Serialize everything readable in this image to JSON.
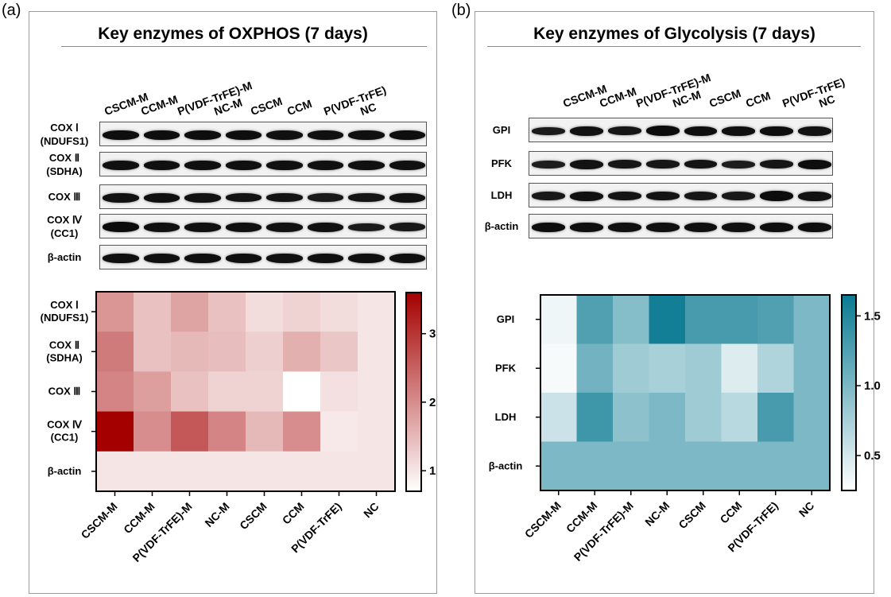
{
  "panels": {
    "a": {
      "letter": "(a)",
      "title": "Key enzymes of OXPHOS (7 days)",
      "lanes": [
        "CSCM-M",
        "CCM-M",
        "P(VDF-TrFE)-M",
        "NC-M",
        "CSCM",
        "CCM",
        "P(VDF-TrFE)",
        "NC"
      ],
      "blot_rows": [
        {
          "label": [
            "COX Ⅰ",
            "(NDUFS1)"
          ]
        },
        {
          "label": [
            "COX Ⅱ",
            "(SDHA)"
          ]
        },
        {
          "label": [
            "COX Ⅲ"
          ]
        },
        {
          "label": [
            "COX Ⅳ",
            "(CC1)"
          ]
        },
        {
          "label": [
            "β-actin"
          ]
        }
      ]
    },
    "b": {
      "letter": "(b)",
      "title": "Key enzymes of Glycolysis (7 days)",
      "lanes": [
        "CSCM-M",
        "CCM-M",
        "P(VDF-TrFE)-M",
        "NC-M",
        "CSCM",
        "CCM",
        "P(VDF-TrFE)",
        "NC"
      ],
      "blot_rows": [
        {
          "label": [
            "GPI"
          ]
        },
        {
          "label": [
            "PFK"
          ]
        },
        {
          "label": [
            "LDH"
          ]
        },
        {
          "label": [
            "β-actin"
          ]
        }
      ]
    }
  },
  "chart_data": [
    {
      "type": "heatmap",
      "title": "Key enzymes of OXPHOS (7 days)",
      "rows": [
        "COX Ⅰ\n(NDUFS1)",
        "COX Ⅱ\n(SDHA)",
        "COX Ⅲ",
        "COX Ⅳ\n(CC1)",
        "β-actin"
      ],
      "row_labels": [
        [
          "COX Ⅰ",
          "(NDUFS1)"
        ],
        [
          "COX Ⅱ",
          "(SDHA)"
        ],
        [
          "COX Ⅲ"
        ],
        [
          "COX Ⅳ",
          "(CC1)"
        ],
        [
          "β-actin"
        ]
      ],
      "columns": [
        "CSCM-M",
        "CCM-M",
        "P(VDF-TrFE)-M",
        "NC-M",
        "CSCM",
        "CCM",
        "P(VDF-TrFE)",
        "NC"
      ],
      "values": [
        [
          1.9,
          1.4,
          1.75,
          1.4,
          1.1,
          1.2,
          1.1,
          1.0
        ],
        [
          2.2,
          1.4,
          1.5,
          1.45,
          1.25,
          1.6,
          1.35,
          1.0
        ],
        [
          2.1,
          1.8,
          1.4,
          1.2,
          1.2,
          0.7,
          1.05,
          1.0
        ],
        [
          3.6,
          2.0,
          2.6,
          2.1,
          1.5,
          2.0,
          0.95,
          1.0
        ],
        [
          1.0,
          1.0,
          1.0,
          1.0,
          1.0,
          1.0,
          1.0,
          1.0
        ]
      ],
      "colorscale": {
        "min": 0.7,
        "max": 3.6,
        "low_color": "#ffffff",
        "high_color": "#a50000"
      },
      "colorbar_ticks": [
        1,
        2,
        3
      ],
      "colorbar_tick_labels": [
        "1",
        "2",
        "3"
      ]
    },
    {
      "type": "heatmap",
      "title": "Key enzymes of Glycolysis (7 days)",
      "rows": [
        "GPI",
        "PFK",
        "LDH",
        "β-actin"
      ],
      "row_labels": [
        [
          "GPI"
        ],
        [
          "PFK"
        ],
        [
          "LDH"
        ],
        [
          "β-actin"
        ]
      ],
      "columns": [
        "CSCM-M",
        "CCM-M",
        "P(VDF-TrFE)-M",
        "NC-M",
        "CSCM",
        "CCM",
        "P(VDF-TrFE)",
        "NC"
      ],
      "values": [
        [
          0.35,
          1.25,
          0.95,
          1.6,
          1.3,
          1.3,
          1.25,
          1.0
        ],
        [
          0.3,
          1.05,
          0.8,
          0.75,
          0.8,
          0.45,
          0.7,
          1.0
        ],
        [
          0.55,
          1.35,
          0.9,
          1.0,
          0.8,
          0.65,
          1.3,
          1.0
        ],
        [
          1.0,
          1.0,
          1.0,
          1.0,
          1.0,
          1.0,
          1.0,
          1.0
        ]
      ],
      "colorscale": {
        "min": 0.25,
        "max": 1.65,
        "low_color": "#ffffff",
        "high_color": "#0a7a92"
      },
      "colorbar_ticks": [
        0.5,
        1.0,
        1.5
      ],
      "colorbar_tick_labels": [
        "0.5",
        "1.0",
        "1.5"
      ]
    }
  ]
}
